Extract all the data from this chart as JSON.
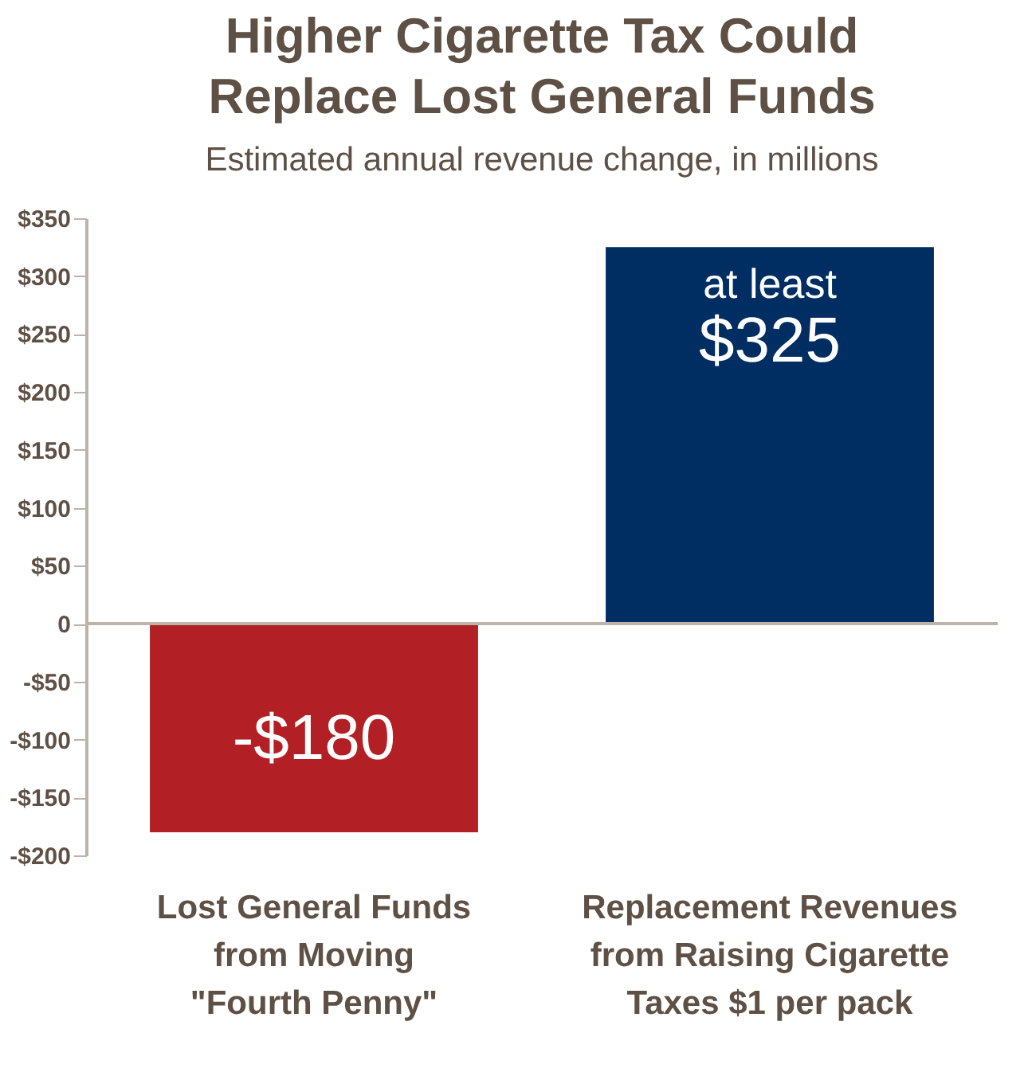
{
  "chart_data": {
    "type": "bar",
    "title": "Higher Cigarette Tax Could\nReplace Lost General Funds",
    "subtitle": "Estimated annual revenue change, in millions",
    "categories": [
      "Lost General Funds\nfrom Moving\n\"Fourth Penny\"",
      "Replacement Revenues\nfrom Raising Cigarette\nTaxes $1 per pack"
    ],
    "values": [
      -180,
      325
    ],
    "colors": [
      "#b22025",
      "#002d62"
    ],
    "value_labels": [
      "-$180",
      "at least $325"
    ],
    "ylim": [
      -200,
      350
    ],
    "yticks": [
      {
        "value": -200,
        "label": "-$200"
      },
      {
        "value": -150,
        "label": "-$150"
      },
      {
        "value": -100,
        "label": "-$100"
      },
      {
        "value": -50,
        "label": "-$50"
      },
      0,
      {
        "value": 50,
        "label": "$50"
      },
      {
        "value": 100,
        "label": "$100"
      },
      {
        "value": 150,
        "label": "$150"
      },
      {
        "value": 200,
        "label": "$200"
      },
      {
        "value": 250,
        "label": "$250"
      },
      {
        "value": 300,
        "label": "$300"
      },
      {
        "value": 350,
        "label": "$350"
      }
    ],
    "ref_lines": [
      {
        "axis": "y",
        "value": 0,
        "color": "#bcb3aa"
      }
    ],
    "grid": false
  }
}
